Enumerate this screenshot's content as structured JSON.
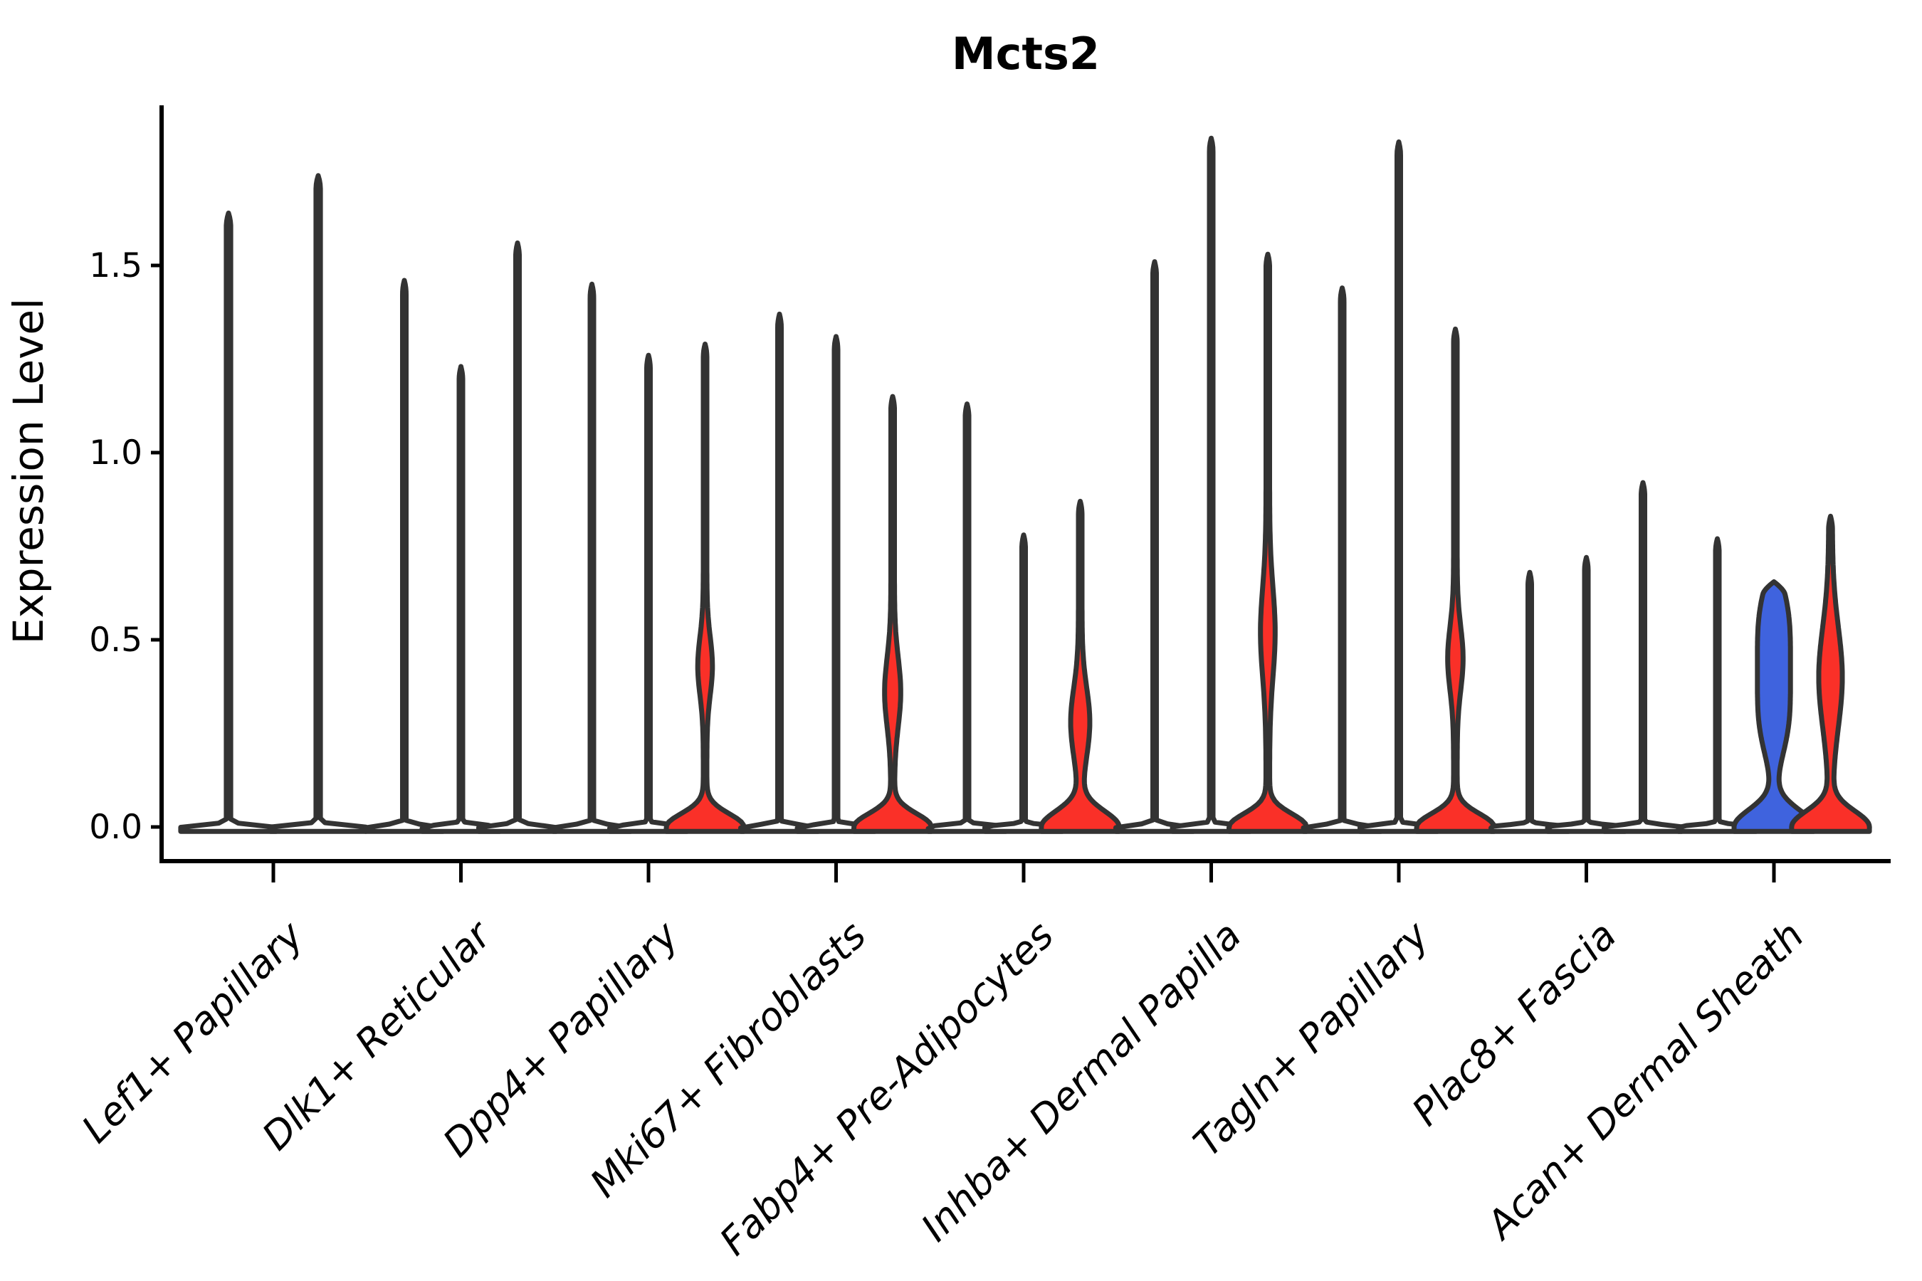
{
  "chart_data": {
    "type": "violin",
    "title": "Mcts2",
    "ylabel": "Expression Level",
    "xlabel": "",
    "ylim": [
      -0.09,
      1.93
    ],
    "yticks": [
      0.0,
      0.5,
      1.0,
      1.5
    ],
    "ytick_labels": [
      "0.0",
      "0.5",
      "1.0",
      "1.5"
    ],
    "grid": false,
    "legend": null,
    "x_tick_rotation": 45,
    "colors": {
      "red": "#fa3028",
      "blue": "#3f63de",
      "white": "#ffffff",
      "outline": "#333333",
      "axis": "#000000",
      "background": "#ffffff"
    },
    "categories": [
      "Lef1+ Papillary",
      "Dlk1+ Reticular",
      "Dpp4+ Papillary",
      "Mki67+ Fibroblasts",
      "Fabp4+ Pre-Adipocytes",
      "Inhba+ Dermal Papilla",
      "Tagln+ Papillary",
      "Plac8+ Fascia",
      "Acan+ Dermal Sheath"
    ],
    "groups": [
      {
        "category": "Lef1+ Papillary",
        "violins": [
          {
            "position": 1,
            "fill": "white",
            "max": 1.64,
            "base_height": 0.015,
            "bulge": null
          },
          {
            "position": 2,
            "fill": "white",
            "max": 1.74,
            "base_height": 0.015,
            "bulge": null
          }
        ]
      },
      {
        "category": "Dlk1+ Reticular",
        "violins": [
          {
            "position": 1,
            "fill": "white",
            "max": 1.46,
            "base_height": 0.015,
            "bulge": null
          },
          {
            "position": 2,
            "fill": "white",
            "max": 1.23,
            "base_height": 0.015,
            "bulge": null
          },
          {
            "position": 3,
            "fill": "white",
            "max": 1.56,
            "base_height": 0.015,
            "bulge": null
          }
        ]
      },
      {
        "category": "Dpp4+ Papillary",
        "violins": [
          {
            "position": 1,
            "fill": "white",
            "max": 1.45,
            "base_height": 0.015,
            "bulge": null
          },
          {
            "position": 2,
            "fill": "white",
            "max": 1.26,
            "base_height": 0.015,
            "bulge": null
          },
          {
            "position": 3,
            "fill": "red",
            "max": 1.29,
            "base_height": 0.1,
            "bulge": {
              "center": 0.43,
              "spread": 0.11,
              "rel_halfwidth": 0.15,
              "power": 2
            }
          }
        ]
      },
      {
        "category": "Mki67+ Fibroblasts",
        "violins": [
          {
            "position": 1,
            "fill": "white",
            "max": 1.37,
            "base_height": 0.015,
            "bulge": null
          },
          {
            "position": 2,
            "fill": "white",
            "max": 1.31,
            "base_height": 0.015,
            "bulge": null
          },
          {
            "position": 3,
            "fill": "red",
            "max": 1.15,
            "base_height": 0.1,
            "bulge": {
              "center": 0.36,
              "spread": 0.13,
              "rel_halfwidth": 0.17,
              "power": 2
            }
          }
        ]
      },
      {
        "category": "Fabp4+ Pre-Adipocytes",
        "violins": [
          {
            "position": 1,
            "fill": "white",
            "max": 1.13,
            "base_height": 0.015,
            "bulge": null
          },
          {
            "position": 2,
            "fill": "white",
            "max": 0.78,
            "base_height": 0.015,
            "bulge": null
          },
          {
            "position": 3,
            "fill": "red",
            "max": 0.87,
            "base_height": 0.12,
            "bulge": {
              "center": 0.28,
              "spread": 0.13,
              "rel_halfwidth": 0.21,
              "power": 2
            }
          }
        ]
      },
      {
        "category": "Inhba+ Dermal Papilla",
        "violins": [
          {
            "position": 1,
            "fill": "white",
            "max": 1.51,
            "base_height": 0.015,
            "bulge": null
          },
          {
            "position": 2,
            "fill": "white",
            "max": 1.84,
            "base_height": 0.015,
            "bulge": null
          },
          {
            "position": 3,
            "fill": "red",
            "max": 1.53,
            "base_height": 0.1,
            "bulge": {
              "center": 0.52,
              "spread": 0.17,
              "rel_halfwidth": 0.15,
              "power": 2
            }
          }
        ]
      },
      {
        "category": "Tagln+ Papillary",
        "violins": [
          {
            "position": 1,
            "fill": "white",
            "max": 1.44,
            "base_height": 0.015,
            "bulge": null
          },
          {
            "position": 2,
            "fill": "white",
            "max": 1.83,
            "base_height": 0.015,
            "bulge": null
          },
          {
            "position": 3,
            "fill": "red",
            "max": 1.33,
            "base_height": 0.1,
            "bulge": {
              "center": 0.45,
              "spread": 0.12,
              "rel_halfwidth": 0.16,
              "power": 2
            }
          }
        ]
      },
      {
        "category": "Plac8+ Fascia",
        "violins": [
          {
            "position": 1,
            "fill": "white",
            "max": 0.68,
            "base_height": 0.015,
            "bulge": null
          },
          {
            "position": 2,
            "fill": "white",
            "max": 0.72,
            "base_height": 0.015,
            "bulge": null
          },
          {
            "position": 3,
            "fill": "white",
            "max": 0.92,
            "base_height": 0.015,
            "bulge": null
          }
        ]
      },
      {
        "category": "Acan+ Dermal Sheath",
        "violins": [
          {
            "position": 1,
            "fill": "white",
            "max": 0.77,
            "base_height": 0.015,
            "bulge": null
          },
          {
            "position": 2,
            "fill": "blue",
            "max": 0.655,
            "base_height": 0.13,
            "spike": 0.077,
            "bulge": {
              "center": 0.42,
              "spread": 0.24,
              "rel_halfwidth": 0.37,
              "power": 4
            }
          },
          {
            "position": 3,
            "fill": "red",
            "max": 0.83,
            "base_height": 0.12,
            "bulge": {
              "center": 0.4,
              "spread": 0.19,
              "rel_halfwidth": 0.27,
              "power": 2
            }
          }
        ]
      }
    ]
  }
}
